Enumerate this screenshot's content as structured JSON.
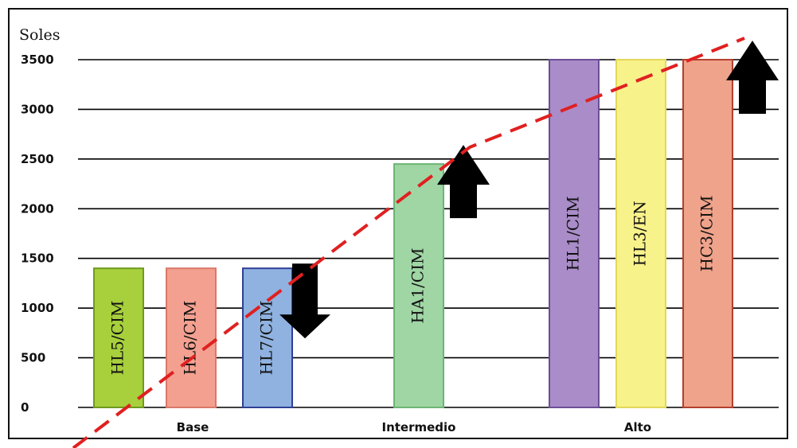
{
  "chart_data": {
    "type": "bar",
    "title": "",
    "ylabel": "Soles",
    "xlabel": "",
    "ylim": [
      0,
      3500
    ],
    "yticks": [
      0,
      500,
      1000,
      1500,
      2000,
      2500,
      3000,
      3500
    ],
    "grid": true,
    "groups": [
      {
        "name": "Base",
        "bars": [
          {
            "label": "HL5/CIM",
            "value": 1400,
            "color": "#a7d03c",
            "border": "#6f9a1e"
          },
          {
            "label": "HL6/CIM",
            "value": 1400,
            "color": "#f4a090",
            "border": "#d9786a"
          },
          {
            "label": "HL7/CIM",
            "value": 1400,
            "color": "#8fb2e0",
            "border": "#2f3f96",
            "arrow": "down"
          }
        ]
      },
      {
        "name": "Intermedio",
        "bars": [
          {
            "label": "HA1/CIM",
            "value": 2450,
            "color": "#9fd6a4",
            "border": "#6db574",
            "arrow": "up"
          }
        ]
      },
      {
        "name": "Alto",
        "bars": [
          {
            "label": "HL1/CIM",
            "value": 3500,
            "color": "#a98cc8",
            "border": "#6b4f96"
          },
          {
            "label": "HL3/EN",
            "value": 3500,
            "color": "#f8f28a",
            "border": "#e2d85a"
          },
          {
            "label": "HC3/CIM",
            "value": 3500,
            "color": "#efa38a",
            "border": "#b2402c",
            "arrow": "up"
          }
        ]
      }
    ],
    "trend_line": {
      "style": "dashed",
      "color": "#e02020"
    }
  }
}
